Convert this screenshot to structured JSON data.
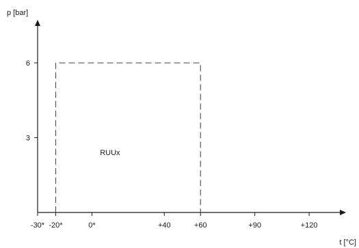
{
  "chart_data": {
    "type": "area",
    "title": "",
    "ylabel": "p [bar]",
    "xlabel": "t [°C]",
    "x_ticks": [
      {
        "value": -30,
        "label": "-30*"
      },
      {
        "value": -20,
        "label": "-20*"
      },
      {
        "value": 0,
        "label": "0*"
      },
      {
        "value": 40,
        "label": "+40"
      },
      {
        "value": 60,
        "label": "+60"
      },
      {
        "value": 90,
        "label": "+90"
      },
      {
        "value": 120,
        "label": "+120"
      }
    ],
    "y_ticks": [
      {
        "value": 3,
        "label": "3"
      },
      {
        "value": 6,
        "label": "6"
      }
    ],
    "xlim": [
      -30,
      140
    ],
    "ylim": [
      0,
      7.7
    ],
    "region": {
      "label": "RUUx",
      "x": [
        -20,
        60
      ],
      "y": [
        0,
        6
      ],
      "style": "dashed"
    },
    "grid": false
  }
}
